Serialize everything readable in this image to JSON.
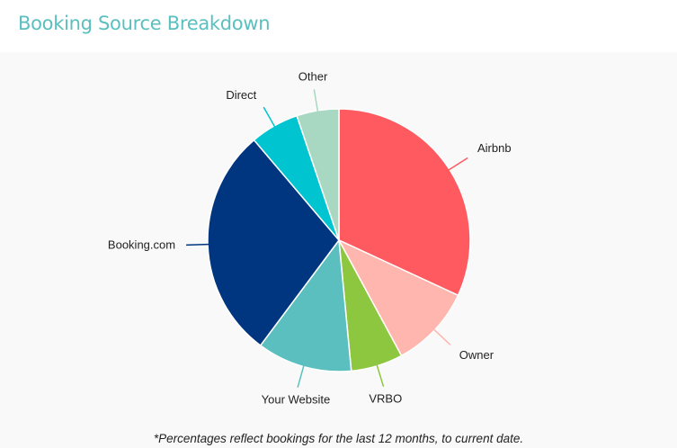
{
  "header": {
    "title": "Booking Source Breakdown"
  },
  "footnote": "*Percentages reflect bookings for the last 12 months, to current date.",
  "chart_data": {
    "type": "pie",
    "start": "top",
    "direction": "clockwise",
    "slices": [
      {
        "label": "Airbnb",
        "value": 31.9,
        "color": "#ff5a5f"
      },
      {
        "label": "Owner",
        "value": 10.2,
        "color": "#ffb6ae"
      },
      {
        "label": "VRBO",
        "value": 6.4,
        "color": "#8dc63f"
      },
      {
        "label": "Your Website",
        "value": 11.7,
        "color": "#5bbfbf"
      },
      {
        "label": "Booking.com",
        "value": 28.6,
        "color": "#003580"
      },
      {
        "label": "Direct",
        "value": 6.0,
        "color": "#00c4d0"
      },
      {
        "label": "Other",
        "value": 5.2,
        "color": "#a8d8c2"
      }
    ]
  }
}
